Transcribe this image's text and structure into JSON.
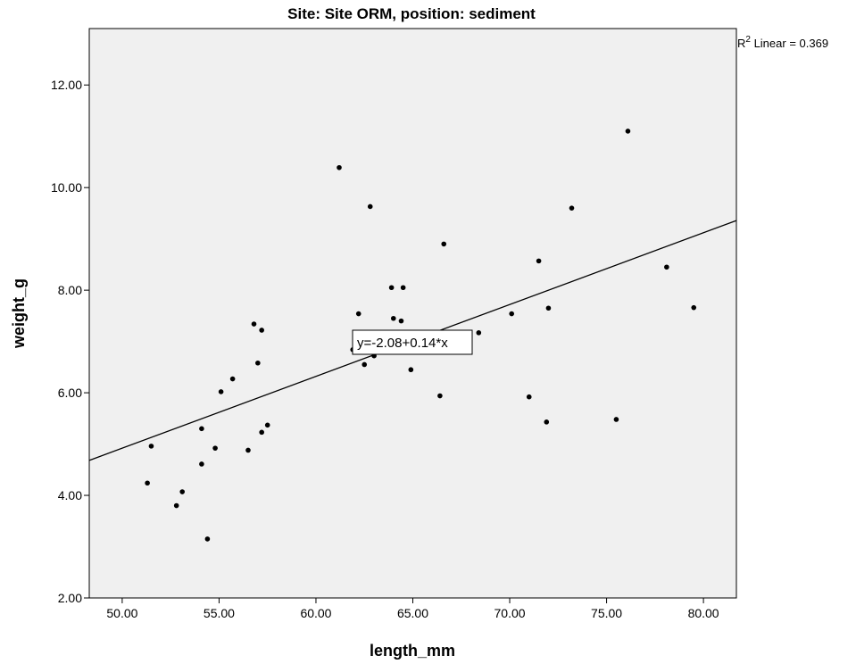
{
  "chart_data": {
    "type": "scatter",
    "title": "Site: Site ORM, position: sediment",
    "xlabel": "length_mm",
    "ylabel": "weight_g",
    "xlim": [
      48.3,
      81.7
    ],
    "ylim": [
      2.0,
      13.1
    ],
    "x_ticks": [
      50,
      55,
      60,
      65,
      70,
      75,
      80
    ],
    "x_tick_labels": [
      "50.00",
      "55.00",
      "60.00",
      "65.00",
      "70.00",
      "75.00",
      "80.00"
    ],
    "y_ticks": [
      2,
      4,
      6,
      8,
      10,
      12
    ],
    "y_tick_labels": [
      "2.00",
      "4.00",
      "6.00",
      "8.00",
      "10.00",
      "12.00"
    ],
    "grid": false,
    "plot_background": "#f0f0f0",
    "marker_color": "#000000",
    "points": [
      {
        "x": 51.3,
        "y": 4.24
      },
      {
        "x": 51.5,
        "y": 4.96
      },
      {
        "x": 52.8,
        "y": 3.8
      },
      {
        "x": 53.1,
        "y": 4.07
      },
      {
        "x": 54.1,
        "y": 4.61
      },
      {
        "x": 54.1,
        "y": 5.3
      },
      {
        "x": 54.4,
        "y": 3.15
      },
      {
        "x": 54.8,
        "y": 4.92
      },
      {
        "x": 55.1,
        "y": 6.02
      },
      {
        "x": 55.7,
        "y": 6.27
      },
      {
        "x": 56.5,
        "y": 4.88
      },
      {
        "x": 56.8,
        "y": 7.34
      },
      {
        "x": 57.0,
        "y": 6.58
      },
      {
        "x": 57.2,
        "y": 5.23
      },
      {
        "x": 57.2,
        "y": 7.22
      },
      {
        "x": 57.5,
        "y": 5.37
      },
      {
        "x": 61.2,
        "y": 10.39
      },
      {
        "x": 61.9,
        "y": 6.84
      },
      {
        "x": 62.2,
        "y": 7.54
      },
      {
        "x": 62.5,
        "y": 6.55
      },
      {
        "x": 62.8,
        "y": 9.63
      },
      {
        "x": 63.0,
        "y": 6.72
      },
      {
        "x": 63.9,
        "y": 8.05
      },
      {
        "x": 64.0,
        "y": 7.45
      },
      {
        "x": 64.4,
        "y": 7.4
      },
      {
        "x": 64.5,
        "y": 8.05
      },
      {
        "x": 64.9,
        "y": 6.45
      },
      {
        "x": 66.4,
        "y": 5.94
      },
      {
        "x": 66.6,
        "y": 8.9
      },
      {
        "x": 68.4,
        "y": 7.17
      },
      {
        "x": 70.1,
        "y": 7.54
      },
      {
        "x": 71.0,
        "y": 5.92
      },
      {
        "x": 71.5,
        "y": 8.57
      },
      {
        "x": 71.9,
        "y": 5.43
      },
      {
        "x": 72.0,
        "y": 7.65
      },
      {
        "x": 73.2,
        "y": 9.6
      },
      {
        "x": 75.5,
        "y": 5.48
      },
      {
        "x": 76.1,
        "y": 11.1
      },
      {
        "x": 78.1,
        "y": 8.45
      },
      {
        "x": 79.5,
        "y": 7.66
      }
    ],
    "fit_line": {
      "intercept": -2.08,
      "slope": 0.14,
      "equation_label": "y=-2.08+0.14*x"
    },
    "r2_label_prefix": "R",
    "r2_label_sup": "2",
    "r2_label_suffix": " Linear = 0.369"
  }
}
